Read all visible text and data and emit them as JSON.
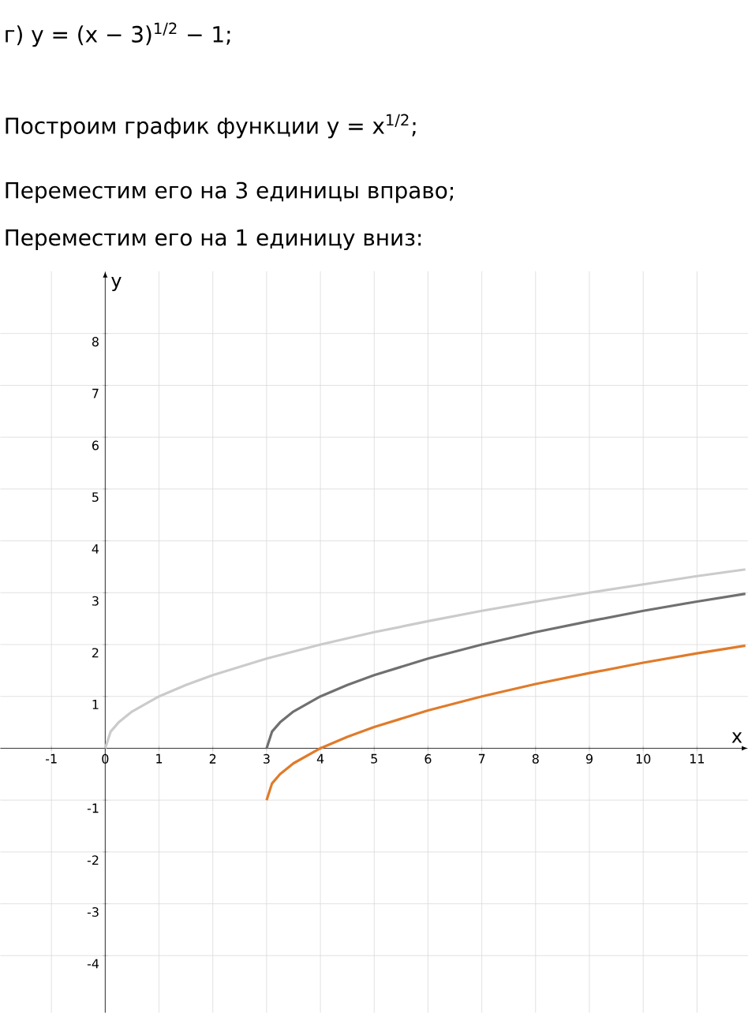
{
  "chart_data": {
    "type": "line",
    "title": "г) y = (x − 3)$^{1/2}$ − 1;",
    "annotations": [
      "Построим график функции y = x$^{1/2}$;",
      "Переместим его на 3 единицы вправо;",
      "Переместим его на 1 единицу вниз:"
    ],
    "xlabel": "x",
    "ylabel": "y",
    "series": [
      {
        "color": "#cbcbcb",
        "x": [
          0,
          0.1,
          0.25,
          0.5,
          1,
          1.5,
          2,
          3,
          4,
          5,
          6,
          7,
          8,
          9,
          10,
          11,
          11.9
        ],
        "values": [
          0,
          0.32,
          0.5,
          0.71,
          1,
          1.22,
          1.41,
          1.73,
          2,
          2.24,
          2.45,
          2.65,
          2.83,
          3,
          3.16,
          3.32,
          3.45
        ]
      },
      {
        "color": "#707070",
        "x": [
          3,
          3.1,
          3.25,
          3.5,
          4,
          4.5,
          5,
          6,
          7,
          8,
          9,
          10,
          11,
          11.9
        ],
        "values": [
          0,
          0.32,
          0.5,
          0.71,
          1,
          1.22,
          1.41,
          1.73,
          2,
          2.24,
          2.45,
          2.65,
          2.83,
          2.98
        ]
      },
      {
        "color": "#e07b2a",
        "x": [
          3,
          3.1,
          3.25,
          3.5,
          4,
          4.5,
          5,
          6,
          7,
          8,
          9,
          10,
          11,
          11.9
        ],
        "values": [
          -1,
          -0.68,
          -0.5,
          -0.29,
          0,
          0.22,
          0.41,
          0.73,
          1,
          1.24,
          1.45,
          1.65,
          1.83,
          1.98
        ]
      }
    ],
    "xlim": [
      -1.95,
      11.95
    ],
    "ylim": [
      -5.1,
      9.2
    ],
    "xticks": [
      -1,
      0,
      1,
      2,
      3,
      4,
      5,
      6,
      7,
      8,
      9,
      10,
      11
    ],
    "yticks": [
      -4,
      -3,
      -2,
      -1,
      1,
      2,
      3,
      4,
      5,
      6,
      7,
      8
    ],
    "grid": true,
    "marker": "none",
    "line_style": "solid"
  }
}
